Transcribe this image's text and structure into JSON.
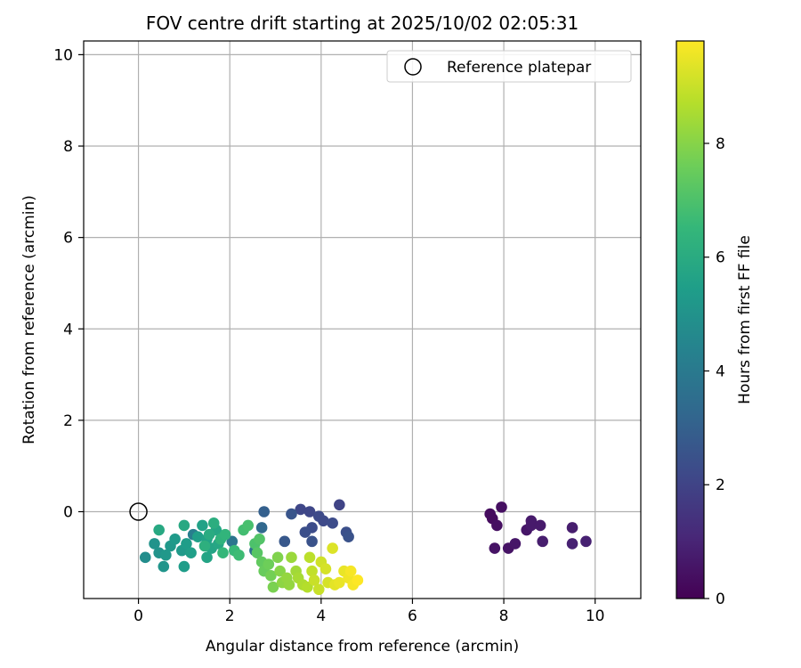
{
  "chart_data": {
    "type": "scatter",
    "title": "FOV centre drift starting at 2025/10/02 02:05:31",
    "xlabel": "Angular distance from reference (arcmin)",
    "ylabel": "Rotation from reference (arcmin)",
    "xlim": [
      -1.2,
      11.0
    ],
    "ylim": [
      -1.9,
      10.3
    ],
    "xticks": [
      0,
      2,
      4,
      6,
      8,
      10
    ],
    "yticks": [
      0,
      2,
      4,
      6,
      8,
      10
    ],
    "grid": true,
    "legend": {
      "position": "top-right",
      "label": "Reference platepar"
    },
    "reference_point": {
      "x": 0,
      "y": 0
    },
    "colorbar": {
      "label": "Hours from first FF file",
      "min": 0,
      "max": 9.8,
      "ticks": [
        0,
        2,
        4,
        6,
        8
      ],
      "colormap": [
        "#440154",
        "#482878",
        "#3e4989",
        "#31688e",
        "#26828e",
        "#1f9e89",
        "#35b779",
        "#6ece58",
        "#b5de2b",
        "#fde725"
      ]
    },
    "points": [
      {
        "x": 7.7,
        "y": -0.05,
        "h": 0.3
      },
      {
        "x": 7.75,
        "y": -0.15,
        "h": 0.3
      },
      {
        "x": 7.95,
        "y": 0.1,
        "h": 0.4
      },
      {
        "x": 7.85,
        "y": -0.3,
        "h": 0.4
      },
      {
        "x": 7.8,
        "y": -0.8,
        "h": 0.5
      },
      {
        "x": 8.1,
        "y": -0.8,
        "h": 0.5
      },
      {
        "x": 8.25,
        "y": -0.7,
        "h": 0.6
      },
      {
        "x": 8.5,
        "y": -0.4,
        "h": 0.6
      },
      {
        "x": 8.6,
        "y": -0.2,
        "h": 0.7
      },
      {
        "x": 8.6,
        "y": -0.3,
        "h": 0.7
      },
      {
        "x": 8.8,
        "y": -0.3,
        "h": 0.7
      },
      {
        "x": 8.85,
        "y": -0.65,
        "h": 0.8
      },
      {
        "x": 9.5,
        "y": -0.35,
        "h": 0.8
      },
      {
        "x": 9.5,
        "y": -0.7,
        "h": 0.9
      },
      {
        "x": 9.8,
        "y": -0.65,
        "h": 0.9
      },
      {
        "x": 4.4,
        "y": 0.15,
        "h": 2.0
      },
      {
        "x": 3.55,
        "y": 0.05,
        "h": 2.1
      },
      {
        "x": 3.75,
        "y": 0.0,
        "h": 2.1
      },
      {
        "x": 3.95,
        "y": -0.1,
        "h": 2.2
      },
      {
        "x": 4.05,
        "y": -0.2,
        "h": 2.2
      },
      {
        "x": 4.25,
        "y": -0.25,
        "h": 2.3
      },
      {
        "x": 3.8,
        "y": -0.35,
        "h": 2.3
      },
      {
        "x": 3.65,
        "y": -0.45,
        "h": 2.4
      },
      {
        "x": 4.55,
        "y": -0.45,
        "h": 2.4
      },
      {
        "x": 4.6,
        "y": -0.55,
        "h": 2.5
      },
      {
        "x": 3.8,
        "y": -0.65,
        "h": 2.5
      },
      {
        "x": 3.35,
        "y": -0.05,
        "h": 2.6
      },
      {
        "x": 3.2,
        "y": -0.65,
        "h": 2.7
      },
      {
        "x": 2.75,
        "y": 0.0,
        "h": 3.0
      },
      {
        "x": 2.7,
        "y": -0.35,
        "h": 3.3
      },
      {
        "x": 2.55,
        "y": -0.85,
        "h": 3.6
      },
      {
        "x": 2.05,
        "y": -0.65,
        "h": 3.8
      },
      {
        "x": 1.2,
        "y": -0.5,
        "h": 4.2
      },
      {
        "x": 0.15,
        "y": -1.0,
        "h": 4.8
      },
      {
        "x": 0.35,
        "y": -0.7,
        "h": 5.0
      },
      {
        "x": 0.45,
        "y": -0.9,
        "h": 5.0
      },
      {
        "x": 0.55,
        "y": -1.2,
        "h": 5.1
      },
      {
        "x": 0.6,
        "y": -0.95,
        "h": 5.2
      },
      {
        "x": 0.7,
        "y": -0.75,
        "h": 5.2
      },
      {
        "x": 0.8,
        "y": -0.6,
        "h": 5.3
      },
      {
        "x": 0.95,
        "y": -0.85,
        "h": 5.3
      },
      {
        "x": 1.0,
        "y": -1.2,
        "h": 5.4
      },
      {
        "x": 1.05,
        "y": -0.7,
        "h": 5.4
      },
      {
        "x": 1.15,
        "y": -0.9,
        "h": 5.5
      },
      {
        "x": 1.3,
        "y": -0.55,
        "h": 5.5
      },
      {
        "x": 1.4,
        "y": -0.3,
        "h": 5.6
      },
      {
        "x": 1.5,
        "y": -0.6,
        "h": 5.6
      },
      {
        "x": 1.5,
        "y": -1.0,
        "h": 5.7
      },
      {
        "x": 1.6,
        "y": -0.8,
        "h": 5.7
      },
      {
        "x": 1.7,
        "y": -0.4,
        "h": 5.8
      },
      {
        "x": 1.75,
        "y": -0.7,
        "h": 5.8
      },
      {
        "x": 0.45,
        "y": -0.4,
        "h": 5.9
      },
      {
        "x": 1.0,
        "y": -0.3,
        "h": 5.9
      },
      {
        "x": 1.55,
        "y": -0.5,
        "h": 6.0
      },
      {
        "x": 1.65,
        "y": -0.25,
        "h": 6.1
      },
      {
        "x": 1.45,
        "y": -0.75,
        "h": 6.2
      },
      {
        "x": 1.8,
        "y": -0.6,
        "h": 6.3
      },
      {
        "x": 1.9,
        "y": -0.5,
        "h": 6.4
      },
      {
        "x": 1.85,
        "y": -0.9,
        "h": 6.5
      },
      {
        "x": 2.1,
        "y": -0.85,
        "h": 6.6
      },
      {
        "x": 2.2,
        "y": -0.95,
        "h": 6.7
      },
      {
        "x": 2.3,
        "y": -0.4,
        "h": 6.8
      },
      {
        "x": 2.4,
        "y": -0.3,
        "h": 6.9
      },
      {
        "x": 2.55,
        "y": -0.7,
        "h": 7.0
      },
      {
        "x": 2.65,
        "y": -0.6,
        "h": 7.1
      },
      {
        "x": 2.6,
        "y": -0.9,
        "h": 7.2
      },
      {
        "x": 2.7,
        "y": -1.1,
        "h": 7.4
      },
      {
        "x": 2.75,
        "y": -1.3,
        "h": 7.5
      },
      {
        "x": 2.85,
        "y": -1.15,
        "h": 7.6
      },
      {
        "x": 2.9,
        "y": -1.4,
        "h": 7.7
      },
      {
        "x": 2.95,
        "y": -1.65,
        "h": 7.8
      },
      {
        "x": 3.05,
        "y": -1.0,
        "h": 7.9
      },
      {
        "x": 3.1,
        "y": -1.3,
        "h": 8.0
      },
      {
        "x": 3.15,
        "y": -1.55,
        "h": 8.1
      },
      {
        "x": 3.25,
        "y": -1.45,
        "h": 8.2
      },
      {
        "x": 3.3,
        "y": -1.6,
        "h": 8.2
      },
      {
        "x": 3.35,
        "y": -1.0,
        "h": 8.3
      },
      {
        "x": 3.45,
        "y": -1.3,
        "h": 8.4
      },
      {
        "x": 3.5,
        "y": -1.45,
        "h": 8.5
      },
      {
        "x": 3.6,
        "y": -1.6,
        "h": 8.6
      },
      {
        "x": 3.7,
        "y": -1.65,
        "h": 8.7
      },
      {
        "x": 3.75,
        "y": -1.0,
        "h": 8.8
      },
      {
        "x": 3.8,
        "y": -1.3,
        "h": 8.9
      },
      {
        "x": 3.85,
        "y": -1.5,
        "h": 9.0
      },
      {
        "x": 3.95,
        "y": -1.7,
        "h": 9.0
      },
      {
        "x": 4.0,
        "y": -1.1,
        "h": 9.1
      },
      {
        "x": 4.1,
        "y": -1.25,
        "h": 9.2
      },
      {
        "x": 4.15,
        "y": -1.55,
        "h": 9.2
      },
      {
        "x": 4.25,
        "y": -0.8,
        "h": 9.3
      },
      {
        "x": 4.3,
        "y": -1.6,
        "h": 9.4
      },
      {
        "x": 4.4,
        "y": -1.55,
        "h": 9.5
      },
      {
        "x": 4.5,
        "y": -1.3,
        "h": 9.5
      },
      {
        "x": 4.6,
        "y": -1.45,
        "h": 9.6
      },
      {
        "x": 4.65,
        "y": -1.3,
        "h": 9.7
      },
      {
        "x": 4.7,
        "y": -1.6,
        "h": 9.7
      },
      {
        "x": 4.8,
        "y": -1.5,
        "h": 9.8
      }
    ]
  }
}
